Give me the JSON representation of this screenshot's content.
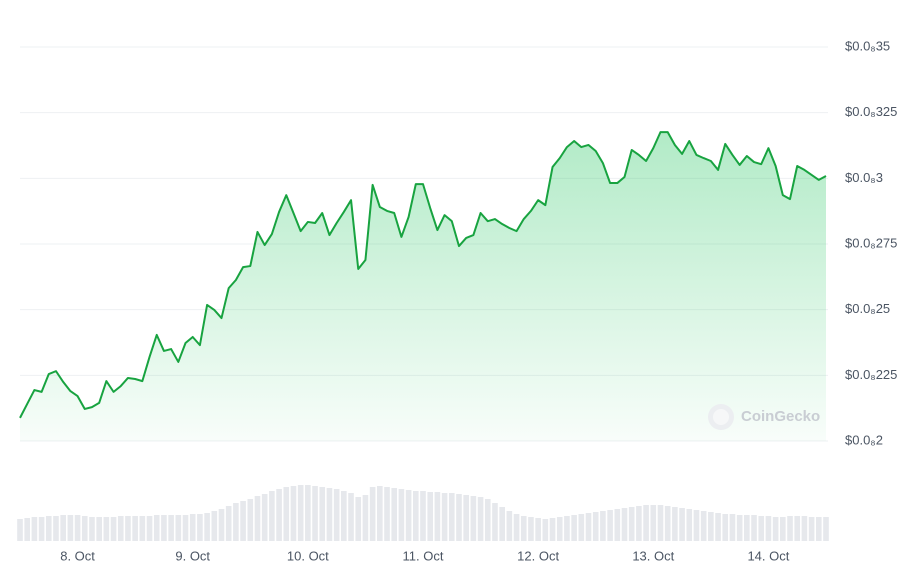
{
  "chart_data": {
    "type": "line",
    "color": "#18a340",
    "area_color": "#22c55e",
    "grid": true,
    "watermark": "CoinGecko",
    "ylim": [
      2e-09,
      3.5e-09
    ],
    "yticks": [
      {
        "value": 2e-09,
        "label": "$0.0₈2"
      },
      {
        "value": 2.25e-09,
        "label": "$0.0₈225"
      },
      {
        "value": 2.5e-09,
        "label": "$0.0₈25"
      },
      {
        "value": 2.75e-09,
        "label": "$0.0₈275"
      },
      {
        "value": 3e-09,
        "label": "$0.0₈3"
      },
      {
        "value": 3.25e-09,
        "label": "$0.0₈325"
      },
      {
        "value": 3.5e-09,
        "label": "$0.0₈35"
      }
    ],
    "categories": [
      null,
      null,
      null,
      null,
      null,
      null,
      null,
      null,
      "8. Oct",
      null,
      null,
      null,
      null,
      null,
      null,
      null,
      null,
      null,
      null,
      null,
      null,
      null,
      null,
      null,
      "9. Oct",
      null,
      null,
      null,
      null,
      null,
      null,
      null,
      null,
      null,
      null,
      null,
      null,
      null,
      null,
      null,
      "10. Oct",
      null,
      null,
      null,
      null,
      null,
      null,
      null,
      null,
      null,
      null,
      null,
      null,
      null,
      null,
      null,
      "11. Oct",
      null,
      null,
      null,
      null,
      null,
      null,
      null,
      null,
      null,
      null,
      null,
      null,
      null,
      null,
      null,
      "12. Oct",
      null,
      null,
      null,
      null,
      null,
      null,
      null,
      null,
      null,
      null,
      null,
      null,
      null,
      null,
      null,
      "13. Oct",
      null,
      null,
      null,
      null,
      null,
      null,
      null,
      null,
      null,
      null,
      null,
      null,
      null,
      null,
      null,
      "14. Oct",
      null,
      null,
      null,
      null,
      null,
      null,
      null,
      null
    ],
    "values": [
      2.088e-09,
      2.141e-09,
      2.194e-09,
      2.187e-09,
      2.255e-09,
      2.266e-09,
      2.225e-09,
      2.19e-09,
      2.171e-09,
      2.122e-09,
      2.129e-09,
      2.145e-09,
      2.228e-09,
      2.187e-09,
      2.209e-09,
      2.24e-09,
      2.236e-09,
      2.228e-09,
      2.32e-09,
      2.404e-09,
      2.343e-09,
      2.35e-09,
      2.301e-09,
      2.373e-09,
      2.396e-09,
      2.365e-09,
      2.518e-09,
      2.499e-09,
      2.468e-09,
      2.582e-09,
      2.613e-09,
      2.662e-09,
      2.666e-09,
      2.796e-09,
      2.746e-09,
      2.788e-09,
      2.872e-09,
      2.936e-09,
      2.868e-09,
      2.799e-09,
      2.834e-09,
      2.83e-09,
      2.868e-09,
      2.784e-09,
      2.83e-09,
      2.872e-09,
      2.917e-09,
      2.655e-09,
      2.689e-09,
      2.975e-09,
      2.891e-09,
      2.876e-09,
      2.868e-09,
      2.777e-09,
      2.853e-09,
      2.978e-09,
      2.978e-09,
      2.887e-09,
      2.803e-09,
      2.86e-09,
      2.837e-09,
      2.742e-09,
      2.773e-09,
      2.784e-09,
      2.868e-09,
      2.837e-09,
      2.845e-09,
      2.826e-09,
      2.811e-09,
      2.799e-09,
      2.845e-09,
      2.876e-09,
      2.917e-09,
      2.898e-09,
      3.043e-09,
      3.077e-09,
      3.119e-09,
      3.142e-09,
      3.119e-09,
      3.127e-09,
      3.104e-09,
      3.058e-09,
      2.982e-09,
      2.982e-09,
      3.005e-09,
      3.108e-09,
      3.089e-09,
      3.066e-09,
      3.115e-09,
      3.176e-09,
      3.176e-09,
      3.127e-09,
      3.093e-09,
      3.142e-09,
      3.089e-09,
      3.077e-09,
      3.066e-09,
      3.032e-09,
      3.131e-09,
      3.089e-09,
      3.051e-09,
      3.085e-09,
      3.062e-09,
      3.054e-09,
      3.115e-09,
      3.047e-09,
      2.936e-09,
      2.921e-09,
      3.047e-09,
      3.032e-09,
      3.013e-09,
      2.994e-09,
      3.009e-09
    ],
    "volume_color": "#e6e8ec",
    "volumes": [
      22,
      23,
      24,
      24,
      25,
      25,
      26,
      26,
      26,
      25,
      24,
      24,
      24,
      24,
      25,
      25,
      25,
      25,
      25,
      26,
      26,
      26,
      26,
      26,
      27,
      27,
      28,
      30,
      32,
      35,
      38,
      40,
      42,
      45,
      47,
      50,
      52,
      54,
      55,
      56,
      56,
      55,
      54,
      53,
      52,
      50,
      48,
      44,
      46,
      54,
      55,
      54,
      53,
      52,
      51,
      50,
      50,
      49,
      49,
      48,
      48,
      47,
      46,
      45,
      44,
      42,
      38,
      34,
      30,
      27,
      25,
      24,
      23,
      22,
      23,
      24,
      25,
      26,
      27,
      28,
      29,
      30,
      31,
      32,
      33,
      34,
      35,
      36,
      36,
      36,
      35,
      34,
      33,
      32,
      31,
      30,
      29,
      28,
      27,
      27,
      26,
      26,
      26,
      25,
      25,
      24,
      24,
      25,
      25,
      25,
      24,
      24,
      24
    ]
  }
}
